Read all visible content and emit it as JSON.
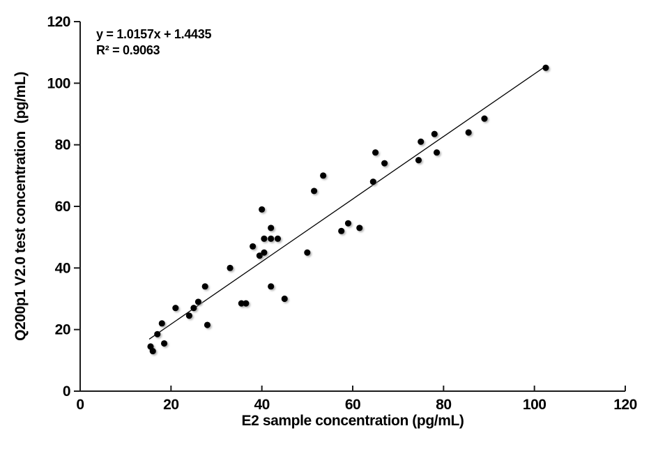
{
  "figure": {
    "annotation_line1": "y = 1.0157x + 1.4435",
    "annotation_line2": "R² = 0.9063"
  },
  "chart_data": {
    "type": "scatter",
    "title": "",
    "xlabel": "E2 sample concentration (pg/mL)",
    "ylabel": "Q200p1 V2.0 test concentration  (pg/mL)",
    "xlim": [
      0,
      120
    ],
    "ylim": [
      0,
      120
    ],
    "xticks": [
      0,
      20,
      40,
      60,
      80,
      100,
      120
    ],
    "yticks": [
      0,
      20,
      40,
      60,
      80,
      100,
      120
    ],
    "grid": false,
    "legend": "none",
    "marker_color": "#000000",
    "line_color": "#000000",
    "axis_color": "#1a1a1a",
    "points": [
      [
        15.5,
        14.5
      ],
      [
        16,
        13
      ],
      [
        17,
        18.5
      ],
      [
        18,
        22
      ],
      [
        18.5,
        15.5
      ],
      [
        21,
        27
      ],
      [
        24,
        24.5
      ],
      [
        25,
        27
      ],
      [
        26,
        29
      ],
      [
        27.5,
        34
      ],
      [
        28,
        21.5
      ],
      [
        33,
        40
      ],
      [
        35.5,
        28.5
      ],
      [
        36.5,
        28.5
      ],
      [
        38,
        47
      ],
      [
        39.5,
        44
      ],
      [
        40,
        59
      ],
      [
        40.5,
        45
      ],
      [
        40.5,
        49.5
      ],
      [
        42,
        34
      ],
      [
        42,
        49.5
      ],
      [
        42,
        53
      ],
      [
        43.5,
        49.5
      ],
      [
        45,
        30
      ],
      [
        50,
        45
      ],
      [
        51.5,
        65
      ],
      [
        53.5,
        70
      ],
      [
        57.5,
        52
      ],
      [
        59,
        54.5
      ],
      [
        61.5,
        53
      ],
      [
        64.5,
        68
      ],
      [
        65,
        77.5
      ],
      [
        67,
        74
      ],
      [
        74.5,
        75
      ],
      [
        75,
        81
      ],
      [
        78,
        83.5
      ],
      [
        78.5,
        77.5
      ],
      [
        85.5,
        84
      ],
      [
        89,
        88.5
      ],
      [
        102.5,
        105
      ]
    ],
    "trendline": {
      "slope": 1.0157,
      "intercept": 1.4435,
      "r_squared": 0.9063,
      "x_start": 15.2,
      "x_end": 102.5
    },
    "annotations": [
      "y = 1.0157x + 1.4435",
      "R² = 0.9063"
    ]
  }
}
